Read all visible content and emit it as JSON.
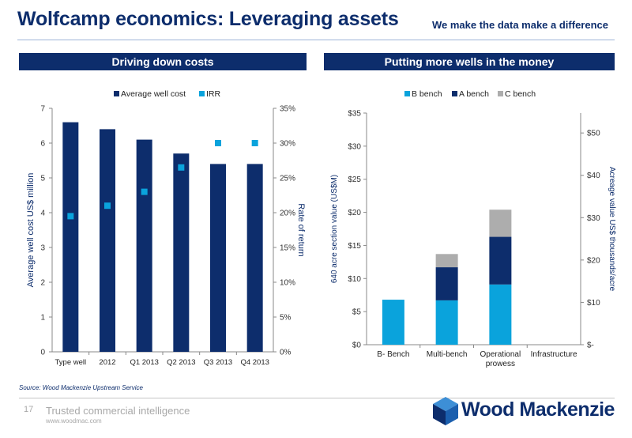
{
  "header": {
    "title": "Wolfcamp economics: Leveraging assets",
    "tagline": "We make the data make a difference"
  },
  "panels": {
    "left_title": "Driving down costs",
    "right_title": "Putting more wells in the money"
  },
  "colors": {
    "navy": "#0d2d6c",
    "cyan": "#0aa3dc",
    "grey": "#adadad"
  },
  "chart_data": [
    {
      "type": "bar",
      "categories": [
        "Type well",
        "2012",
        "Q1 2013",
        "Q2 2013",
        "Q3 2013",
        "Q4 2013"
      ],
      "series": [
        {
          "name": "Average well cost",
          "type": "bar",
          "axis": "left",
          "values": [
            6.6,
            6.4,
            6.1,
            5.7,
            5.4,
            5.4
          ]
        },
        {
          "name": "IRR",
          "type": "scatter",
          "axis": "right",
          "values": [
            19.5,
            21.0,
            23.0,
            26.5,
            30.0,
            30.0
          ]
        }
      ],
      "ylabel": "Average well cost US$ million",
      "ylim": [
        0,
        7
      ],
      "yticks": [
        "0",
        "1",
        "2",
        "3",
        "4",
        "5",
        "6",
        "7"
      ],
      "y2label": "Rate of return",
      "y2lim": [
        0,
        35
      ],
      "y2ticks": [
        "0%",
        "5%",
        "10%",
        "15%",
        "20%",
        "25%",
        "30%",
        "35%"
      ],
      "legend": "top"
    },
    {
      "type": "bar",
      "stacked": true,
      "categories": [
        "B- Bench",
        "Multi-bench",
        "Operational prowess",
        "Infrastructure"
      ],
      "series": [
        {
          "name": "B bench",
          "values": [
            6.8,
            6.7,
            9.1,
            0
          ]
        },
        {
          "name": "A bench",
          "values": [
            0,
            5.0,
            7.2,
            0
          ]
        },
        {
          "name": "C bench",
          "values": [
            0,
            2.0,
            4.1,
            0
          ]
        }
      ],
      "ylabel": "640 acre section value (US$M)",
      "ylim": [
        0,
        35
      ],
      "yticks": [
        "$0",
        "$5",
        "$10",
        "$15",
        "$20",
        "$25",
        "$30",
        "$35"
      ],
      "y2label": "Acreage value US$ thousands/acre",
      "y2lim": [
        0,
        54.7
      ],
      "y2ticks": [
        "$-",
        "$10",
        "$20",
        "$30",
        "$40",
        "$50"
      ],
      "legend": "top"
    }
  ],
  "footer": {
    "source": "Source: Wood Mackenzie Upstream Service",
    "page_number": "17",
    "trusted": "Trusted commercial intelligence",
    "url": "www.woodmac.com",
    "logo_text": "Wood Mackenzie"
  }
}
